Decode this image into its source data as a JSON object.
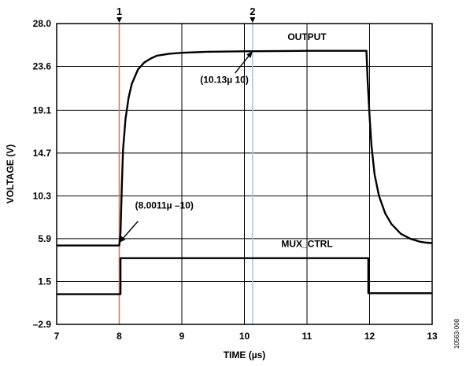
{
  "chart_data": {
    "type": "line",
    "xlabel": "TIME (µs)",
    "ylabel": "VOLTAGE (V)",
    "xlim": [
      7,
      13
    ],
    "ylim": [
      -2.9,
      28.0
    ],
    "x_ticks": [
      7,
      8,
      9,
      10,
      11,
      12,
      13
    ],
    "x_tick_labels": [
      "7",
      "8",
      "9",
      "10",
      "11",
      "12",
      "13"
    ],
    "y_ticks": [
      -2.9,
      1.5,
      5.9,
      10.3,
      14.7,
      19.1,
      23.6,
      28.0
    ],
    "y_tick_labels": [
      "–2.9",
      "1.5",
      "5.9",
      "10.3",
      "14.7",
      "19.1",
      "23.6",
      "28.0"
    ],
    "grid": true,
    "series": [
      {
        "name": "OUTPUT",
        "color": "#000000",
        "x": [
          7.0,
          8.0,
          8.02,
          8.04,
          8.06,
          8.1,
          8.15,
          8.2,
          8.3,
          8.4,
          8.5,
          8.6,
          8.8,
          9.0,
          9.4,
          10.0,
          11.0,
          11.95,
          11.97,
          12.0,
          12.03,
          12.08,
          12.15,
          12.25,
          12.35,
          12.5,
          12.65,
          12.8,
          12.9,
          13.0
        ],
        "y": [
          5.2,
          5.2,
          6.5,
          11.0,
          15.0,
          18.2,
          20.4,
          21.8,
          23.3,
          24.0,
          24.4,
          24.7,
          24.9,
          25.0,
          25.1,
          25.15,
          25.2,
          25.2,
          22.0,
          18.5,
          15.5,
          12.5,
          10.3,
          8.5,
          7.4,
          6.4,
          5.9,
          5.6,
          5.5,
          5.45
        ]
      },
      {
        "name": "MUX_CTRL",
        "color": "#000000",
        "x": [
          7.0,
          8.02,
          8.02,
          11.98,
          11.98,
          13.0
        ],
        "y": [
          0.2,
          0.2,
          3.9,
          3.9,
          0.3,
          0.3
        ]
      }
    ],
    "cursors": [
      {
        "label": "1",
        "x": 8.0,
        "color": "#d07a60"
      },
      {
        "label": "2",
        "x": 10.13,
        "color": "#a9c8e4"
      }
    ],
    "annotations": [
      {
        "text": "(10.13µ 10)",
        "x": 10.13,
        "y": 25.15
      },
      {
        "text": "(8.0011µ –10)",
        "x": 8.0,
        "y": 5.5
      }
    ],
    "figure_code": "10563-008"
  }
}
